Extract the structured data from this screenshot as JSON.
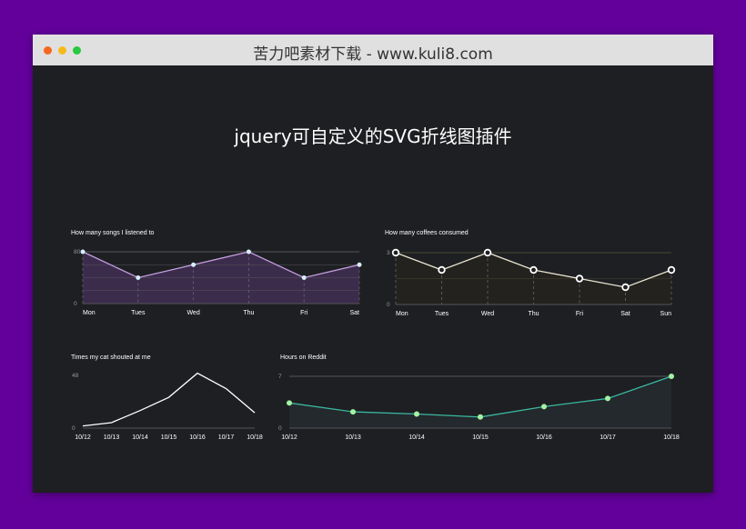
{
  "window": {
    "title": "苦力吧素材下载 - www.kuli8.com",
    "dots": [
      "#f5671e",
      "#f6bb1b",
      "#28c840"
    ]
  },
  "page": {
    "title": "jquery可自定义的SVG折线图插件"
  },
  "chart_data": [
    {
      "type": "area",
      "title": "How many songs I listened to",
      "categories": [
        "Mon",
        "Tues",
        "Wed",
        "Thu",
        "Fri",
        "Sat"
      ],
      "values": [
        80,
        40,
        60,
        80,
        40,
        60
      ],
      "ylim": [
        0,
        80
      ],
      "yticks": [
        "0",
        "80"
      ],
      "color": "#c59ee0",
      "fill": "#3c2c4c",
      "grid": true
    },
    {
      "type": "line",
      "title": "How many coffees consumed",
      "categories": [
        "Mon",
        "Tues",
        "Wed",
        "Thu",
        "Fri",
        "Sat",
        "Sun"
      ],
      "values": [
        3,
        2,
        3,
        2,
        1.5,
        1,
        2
      ],
      "ylim": [
        0,
        3
      ],
      "yticks": [
        "0",
        "3"
      ],
      "color": "#e8e3cf",
      "fill": "#24221f",
      "grid": true
    },
    {
      "type": "line",
      "title": "Times my cat shouted at me",
      "categories": [
        "10/12",
        "10/13",
        "10/14",
        "10/15",
        "10/16",
        "10/17",
        "10/18"
      ],
      "values": [
        2,
        5,
        16,
        28,
        50,
        36,
        14
      ],
      "ylim": [
        0,
        48
      ],
      "yticks": [
        "0",
        "48"
      ],
      "color": "#ffffff",
      "grid": false
    },
    {
      "type": "area",
      "title": "Hours on Reddit",
      "categories": [
        "10/12",
        "10/13",
        "10/14",
        "10/15",
        "10/16",
        "10/17",
        "10/18"
      ],
      "values": [
        3.4,
        2.2,
        1.9,
        1.5,
        2.9,
        4,
        7
      ],
      "ylim": [
        0,
        7
      ],
      "yticks": [
        "0",
        "7"
      ],
      "color": "#3ab7a0",
      "point": "#a4f2a4",
      "fill": "#23292c",
      "grid": true
    }
  ]
}
